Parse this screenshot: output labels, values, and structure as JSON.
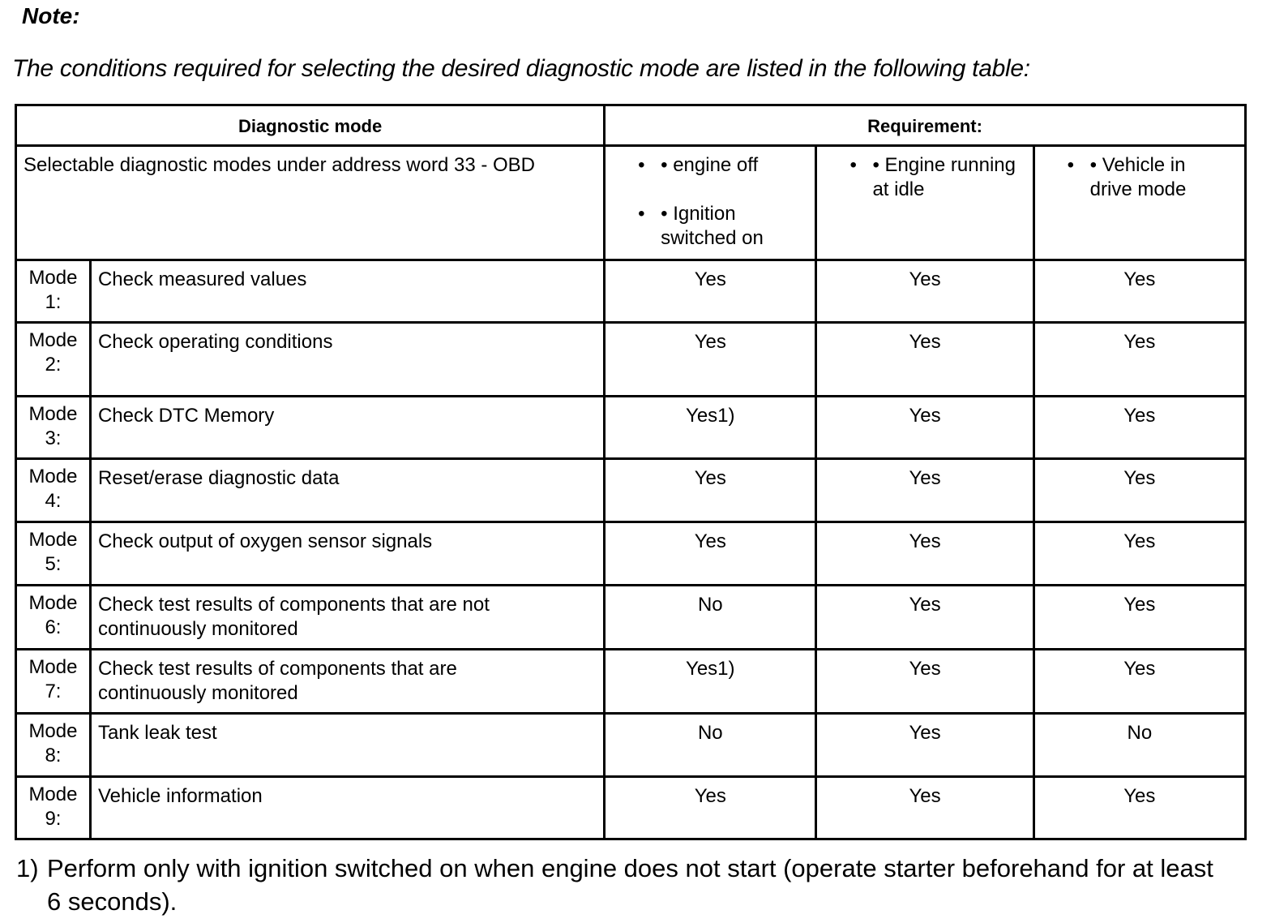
{
  "note_label": "Note:",
  "intro": "The conditions required for selecting the desired diagnostic mode are listed in the following table:",
  "table": {
    "headers": {
      "diagnostic_mode": "Diagnostic mode",
      "requirement": "Requirement:"
    },
    "subheader": {
      "selectable": "Selectable diagnostic modes under address word 33 - OBD",
      "col1": [
        "• engine off",
        "• Ignition switched on"
      ],
      "col2": [
        "• Engine running at idle"
      ],
      "col3": [
        "• Vehicle in drive mode"
      ]
    },
    "rows": [
      {
        "mode": "Mode 1:",
        "desc": "Check measured values",
        "c1": "Yes",
        "c2": "Yes",
        "c3": "Yes"
      },
      {
        "mode": "Mode 2:",
        "desc": "Check operating conditions",
        "c1": "Yes",
        "c2": "Yes",
        "c3": "Yes"
      },
      {
        "mode": "Mode 3:",
        "desc": "Check DTC Memory",
        "c1": "Yes1)",
        "c2": "Yes",
        "c3": "Yes"
      },
      {
        "mode": "Mode 4:",
        "desc": "Reset/erase diagnostic data",
        "c1": "Yes",
        "c2": "Yes",
        "c3": "Yes"
      },
      {
        "mode": "Mode 5:",
        "desc": "Check output of oxygen sensor signals",
        "c1": "Yes",
        "c2": "Yes",
        "c3": "Yes"
      },
      {
        "mode": "Mode 6:",
        "desc": "Check test results of components that are not continuously monitored",
        "c1": "No",
        "c2": "Yes",
        "c3": "Yes"
      },
      {
        "mode": "Mode 7:",
        "desc": "Check test results of components that are continuously monitored",
        "c1": "Yes1)",
        "c2": "Yes",
        "c3": "Yes"
      },
      {
        "mode": "Mode 8:",
        "desc": "Tank leak test",
        "c1": "No",
        "c2": "Yes",
        "c3": "No"
      },
      {
        "mode": "Mode 9:",
        "desc": "Vehicle information",
        "c1": "Yes",
        "c2": "Yes",
        "c3": "Yes"
      }
    ]
  },
  "footnote": {
    "number": "1)",
    "text": "Perform only with ignition switched on when engine does not start (operate starter beforehand for at least 6 seconds)."
  }
}
